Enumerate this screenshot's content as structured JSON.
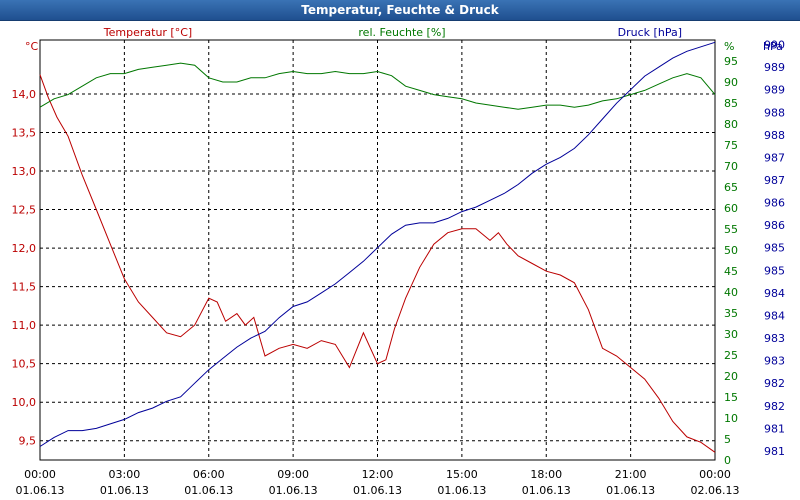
{
  "window": {
    "title": "Temperatur, Feuchte & Druck"
  },
  "colors": {
    "temp": "#bb0000",
    "hum": "#007700",
    "press": "#000099",
    "grid": "#000000"
  },
  "chart_data": {
    "type": "line",
    "title": "Temperatur, Feuchte & Druck",
    "x_ticks": [
      {
        "time": "00:00",
        "date": "01.06.13"
      },
      {
        "time": "03:00",
        "date": "01.06.13"
      },
      {
        "time": "06:00",
        "date": "01.06.13"
      },
      {
        "time": "09:00",
        "date": "01.06.13"
      },
      {
        "time": "12:00",
        "date": "01.06.13"
      },
      {
        "time": "15:00",
        "date": "01.06.13"
      },
      {
        "time": "18:00",
        "date": "01.06.13"
      },
      {
        "time": "21:00",
        "date": "01.06.13"
      },
      {
        "time": "00:00",
        "date": "02.06.13"
      }
    ],
    "xlim_hours": [
      0,
      24
    ],
    "left_axis": {
      "unit_label": "°C",
      "ylim": [
        9.25,
        14.7
      ],
      "ticks": [
        "9,5",
        "10,0",
        "10,5",
        "11,0",
        "11,5",
        "12,0",
        "12,5",
        "13,0",
        "13,5",
        "14,0"
      ],
      "tick_values": [
        9.5,
        10.0,
        10.5,
        11.0,
        11.5,
        12.0,
        12.5,
        13.0,
        13.5,
        14.0
      ]
    },
    "hum_axis": {
      "unit_label": "%",
      "ylim": [
        0,
        100
      ],
      "ticks": [
        "0",
        "5",
        "10",
        "15",
        "20",
        "25",
        "30",
        "35",
        "40",
        "45",
        "50",
        "55",
        "60",
        "65",
        "70",
        "75",
        "80",
        "85",
        "90",
        "95"
      ],
      "tick_values": [
        0,
        5,
        10,
        15,
        20,
        25,
        30,
        35,
        40,
        45,
        50,
        55,
        60,
        65,
        70,
        75,
        80,
        85,
        90,
        95
      ]
    },
    "press_axis": {
      "unit_label": "hPa",
      "ylim": [
        980.8,
        990.1
      ],
      "ticks": [
        "981",
        "981",
        "982",
        "982",
        "983",
        "983",
        "984",
        "984",
        "985",
        "985",
        "986",
        "986",
        "987",
        "987",
        "988",
        "988",
        "989",
        "989",
        "990"
      ],
      "tick_values": [
        981.0,
        981.5,
        982.0,
        982.5,
        983.0,
        983.5,
        984.0,
        984.5,
        985.0,
        985.5,
        986.0,
        986.5,
        987.0,
        987.5,
        988.0,
        988.5,
        989.0,
        989.5,
        990.0
      ]
    },
    "series": [
      {
        "name": "Temperatur [°C]",
        "axis": "left",
        "color": "#bb0000",
        "x": [
          0,
          0.3,
          0.6,
          1.0,
          1.5,
          2.0,
          2.5,
          3.0,
          3.5,
          4.0,
          4.5,
          5.0,
          5.5,
          6.0,
          6.3,
          6.6,
          7.0,
          7.3,
          7.6,
          8.0,
          8.5,
          9.0,
          9.5,
          10.0,
          10.5,
          11.0,
          11.5,
          12.0,
          12.3,
          12.6,
          13.0,
          13.5,
          14.0,
          14.5,
          15.0,
          15.5,
          16.0,
          16.3,
          16.6,
          17.0,
          17.5,
          18.0,
          18.5,
          19.0,
          19.5,
          20.0,
          20.5,
          21.0,
          21.5,
          22.0,
          22.5,
          23.0,
          23.5,
          24.0
        ],
        "values": [
          14.25,
          13.95,
          13.7,
          13.45,
          12.95,
          12.5,
          12.05,
          11.6,
          11.3,
          11.1,
          10.9,
          10.85,
          11.0,
          11.35,
          11.3,
          11.05,
          11.15,
          11.0,
          11.1,
          10.6,
          10.7,
          10.75,
          10.7,
          10.8,
          10.75,
          10.45,
          10.9,
          10.5,
          10.55,
          10.95,
          11.35,
          11.75,
          12.05,
          12.2,
          12.25,
          12.25,
          12.1,
          12.2,
          12.05,
          11.9,
          11.8,
          11.7,
          11.65,
          11.55,
          11.2,
          10.7,
          10.6,
          10.45,
          10.3,
          10.05,
          9.75,
          9.55,
          9.48,
          9.35
        ]
      },
      {
        "name": "rel. Feuchte [%]",
        "axis": "hum",
        "color": "#007700",
        "x": [
          0,
          0.5,
          1.0,
          1.5,
          2.0,
          2.5,
          3.0,
          3.5,
          4.0,
          4.5,
          5.0,
          5.5,
          6.0,
          6.5,
          7.0,
          7.5,
          8.0,
          8.5,
          9.0,
          9.5,
          10.0,
          10.5,
          11.0,
          11.5,
          12.0,
          12.5,
          13.0,
          13.5,
          14.0,
          14.5,
          15.0,
          15.5,
          16.0,
          16.5,
          17.0,
          17.5,
          18.0,
          18.5,
          19.0,
          19.5,
          20.0,
          20.5,
          21.0,
          21.5,
          22.0,
          22.5,
          23.0,
          23.5,
          24.0
        ],
        "values": [
          84,
          86,
          87,
          89,
          91,
          92,
          92,
          93,
          93.5,
          94,
          94.5,
          94,
          91,
          90,
          90,
          91,
          91,
          92,
          92.5,
          92,
          92,
          92.5,
          92,
          92,
          92.5,
          91.5,
          89,
          88,
          87,
          86.5,
          86,
          85,
          84.5,
          84,
          83.5,
          84,
          84.5,
          84.5,
          84,
          84.5,
          85.5,
          86,
          87,
          88,
          89.5,
          91,
          92,
          91,
          87
        ]
      },
      {
        "name": "Druck [hPa]",
        "axis": "press",
        "color": "#000099",
        "x": [
          0,
          0.5,
          1.0,
          1.5,
          2.0,
          2.5,
          3.0,
          3.5,
          4.0,
          4.5,
          5.0,
          5.5,
          6.0,
          6.5,
          7.0,
          7.5,
          8.0,
          8.5,
          9.0,
          9.5,
          10.0,
          10.5,
          11.0,
          11.5,
          12.0,
          12.5,
          13.0,
          13.5,
          14.0,
          14.5,
          15.0,
          15.5,
          16.0,
          16.5,
          17.0,
          17.5,
          18.0,
          18.5,
          19.0,
          19.5,
          20.0,
          20.5,
          21.0,
          21.5,
          22.0,
          22.5,
          23.0,
          23.5,
          24.0
        ],
        "values": [
          981.1,
          981.3,
          981.45,
          981.45,
          981.5,
          981.6,
          981.7,
          981.85,
          981.95,
          982.1,
          982.2,
          982.5,
          982.8,
          983.05,
          983.3,
          983.5,
          983.65,
          983.95,
          984.2,
          984.3,
          984.5,
          984.7,
          984.95,
          985.2,
          985.5,
          985.8,
          986.0,
          986.05,
          986.05,
          986.15,
          986.3,
          986.4,
          986.55,
          986.7,
          986.9,
          987.15,
          987.35,
          987.5,
          987.7,
          988.0,
          988.35,
          988.7,
          989.0,
          989.3,
          989.5,
          989.7,
          989.85,
          989.95,
          990.05
        ]
      }
    ]
  }
}
